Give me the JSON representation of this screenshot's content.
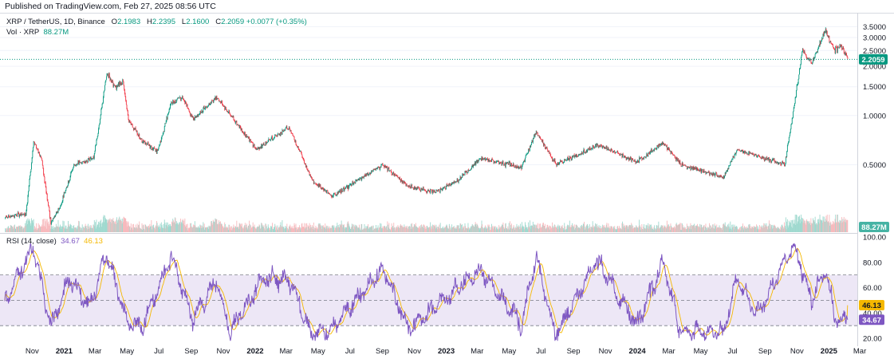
{
  "header": {
    "published": "Published on TradingView.com, Feb 27, 2025 08:56 UTC"
  },
  "legend": {
    "symbol": "XRP / TetherUS, 1D, Binance",
    "o_label": "O",
    "o": "2.1983",
    "h_label": "H",
    "h": "2.2395",
    "l_label": "L",
    "l": "2.1600",
    "c_label": "C",
    "c": "2.2059",
    "change": "+0.0077 (+0.35%)",
    "vol_label": "Vol · XRP",
    "vol": "88.27M",
    "rsi_label": "RSI (14, close)",
    "rsi": "34.67",
    "rsi_ma": "46.13"
  },
  "colors": {
    "up": "#089981",
    "down": "#f23645",
    "rsi": "#7e57c2",
    "rsi_ma": "#f5b800",
    "band": "#ede7f6"
  },
  "chart_data": [
    {
      "type": "candlestick",
      "title": "XRP / TetherUS, 1D, Binance",
      "y_scale": "log",
      "ylim": [
        0.2,
        3.8
      ],
      "y_ticks": [
        "3.5000",
        "3.0000",
        "2.5000",
        "2.0000",
        "1.5000",
        "1.0000",
        "0.5000"
      ],
      "last_price": "2.2059",
      "last_volume": "88.27M",
      "x_ticks": [
        "Nov",
        "2021",
        "Mar",
        "May",
        "Jul",
        "Sep",
        "Nov",
        "2022",
        "Mar",
        "May",
        "Jul",
        "Sep",
        "Nov",
        "2023",
        "Mar",
        "May",
        "Jul",
        "Sep",
        "Nov",
        "2024",
        "Mar",
        "May",
        "Jul",
        "Sep",
        "Nov",
        "2025",
        "Mar"
      ],
      "approx_close_path": [
        {
          "date": "2020-10-01",
          "close": 0.24
        },
        {
          "date": "2020-11-10",
          "close": 0.25
        },
        {
          "date": "2020-11-25",
          "close": 0.68
        },
        {
          "date": "2020-12-10",
          "close": 0.55
        },
        {
          "date": "2020-12-28",
          "close": 0.22
        },
        {
          "date": "2021-01-15",
          "close": 0.28
        },
        {
          "date": "2021-02-10",
          "close": 0.5
        },
        {
          "date": "2021-03-20",
          "close": 0.55
        },
        {
          "date": "2021-04-14",
          "close": 1.8
        },
        {
          "date": "2021-05-01",
          "close": 1.5
        },
        {
          "date": "2021-05-15",
          "close": 1.6
        },
        {
          "date": "2021-05-25",
          "close": 0.95
        },
        {
          "date": "2021-06-20",
          "close": 0.7
        },
        {
          "date": "2021-07-20",
          "close": 0.6
        },
        {
          "date": "2021-08-15",
          "close": 1.2
        },
        {
          "date": "2021-09-05",
          "close": 1.3
        },
        {
          "date": "2021-09-25",
          "close": 0.95
        },
        {
          "date": "2021-11-10",
          "close": 1.3
        },
        {
          "date": "2021-12-20",
          "close": 0.88
        },
        {
          "date": "2022-01-25",
          "close": 0.62
        },
        {
          "date": "2022-03-28",
          "close": 0.85
        },
        {
          "date": "2022-05-12",
          "close": 0.4
        },
        {
          "date": "2022-06-18",
          "close": 0.32
        },
        {
          "date": "2022-09-23",
          "close": 0.5
        },
        {
          "date": "2022-11-10",
          "close": 0.37
        },
        {
          "date": "2022-12-30",
          "close": 0.34
        },
        {
          "date": "2023-02-15",
          "close": 0.4
        },
        {
          "date": "2023-03-29",
          "close": 0.55
        },
        {
          "date": "2023-06-15",
          "close": 0.48
        },
        {
          "date": "2023-07-13",
          "close": 0.8
        },
        {
          "date": "2023-08-20",
          "close": 0.5
        },
        {
          "date": "2023-11-10",
          "close": 0.66
        },
        {
          "date": "2024-01-20",
          "close": 0.52
        },
        {
          "date": "2024-03-12",
          "close": 0.68
        },
        {
          "date": "2024-04-15",
          "close": 0.5
        },
        {
          "date": "2024-07-05",
          "close": 0.42
        },
        {
          "date": "2024-07-31",
          "close": 0.62
        },
        {
          "date": "2024-10-30",
          "close": 0.5
        },
        {
          "date": "2024-11-16",
          "close": 1.1
        },
        {
          "date": "2024-12-03",
          "close": 2.5
        },
        {
          "date": "2024-12-20",
          "close": 2.1
        },
        {
          "date": "2025-01-16",
          "close": 3.3
        },
        {
          "date": "2025-02-03",
          "close": 2.5
        },
        {
          "date": "2025-02-15",
          "close": 2.7
        },
        {
          "date": "2025-02-27",
          "close": 2.2059
        }
      ]
    },
    {
      "type": "line",
      "title": "RSI (14, close)",
      "ylim": [
        15,
        100
      ],
      "y_ticks": [
        "100.00",
        "80.00",
        "60.00",
        "40.00",
        "20.00"
      ],
      "bands": [
        30,
        50,
        70
      ],
      "series": [
        {
          "name": "RSI",
          "last": "34.67"
        },
        {
          "name": "RSI-based MA",
          "last": "46.13"
        }
      ],
      "approx_rsi_path": [
        {
          "date": "2020-10-01",
          "rsi": 50
        },
        {
          "date": "2020-11-24",
          "rsi": 92
        },
        {
          "date": "2020-12-28",
          "rsi": 30
        },
        {
          "date": "2021-02-01",
          "rsi": 68
        },
        {
          "date": "2021-03-10",
          "rsi": 45
        },
        {
          "date": "2021-04-14",
          "rsi": 87
        },
        {
          "date": "2021-05-23",
          "rsi": 30
        },
        {
          "date": "2021-06-22",
          "rsi": 30
        },
        {
          "date": "2021-08-15",
          "rsi": 85
        },
        {
          "date": "2021-09-25",
          "rsi": 35
        },
        {
          "date": "2021-11-10",
          "rsi": 65
        },
        {
          "date": "2021-12-05",
          "rsi": 25
        },
        {
          "date": "2022-02-08",
          "rsi": 68
        },
        {
          "date": "2022-03-28",
          "rsi": 66
        },
        {
          "date": "2022-05-12",
          "rsi": 22
        },
        {
          "date": "2022-06-18",
          "rsi": 28
        },
        {
          "date": "2022-09-23",
          "rsi": 75
        },
        {
          "date": "2022-11-10",
          "rsi": 28
        },
        {
          "date": "2023-02-15",
          "rsi": 60
        },
        {
          "date": "2023-03-29",
          "rsi": 75
        },
        {
          "date": "2023-06-15",
          "rsi": 30
        },
        {
          "date": "2023-07-13",
          "rsi": 85
        },
        {
          "date": "2023-08-18",
          "rsi": 22
        },
        {
          "date": "2023-11-06",
          "rsi": 82
        },
        {
          "date": "2024-01-20",
          "rsi": 30
        },
        {
          "date": "2024-03-12",
          "rsi": 80
        },
        {
          "date": "2024-04-13",
          "rsi": 25
        },
        {
          "date": "2024-07-05",
          "rsi": 25
        },
        {
          "date": "2024-07-31",
          "rsi": 68
        },
        {
          "date": "2024-09-06",
          "rsi": 38
        },
        {
          "date": "2024-11-16",
          "rsi": 93
        },
        {
          "date": "2024-12-20",
          "rsi": 50
        },
        {
          "date": "2025-01-16",
          "rsi": 75
        },
        {
          "date": "2025-02-03",
          "rsi": 35
        },
        {
          "date": "2025-02-27",
          "rsi": 34.67
        }
      ]
    }
  ]
}
